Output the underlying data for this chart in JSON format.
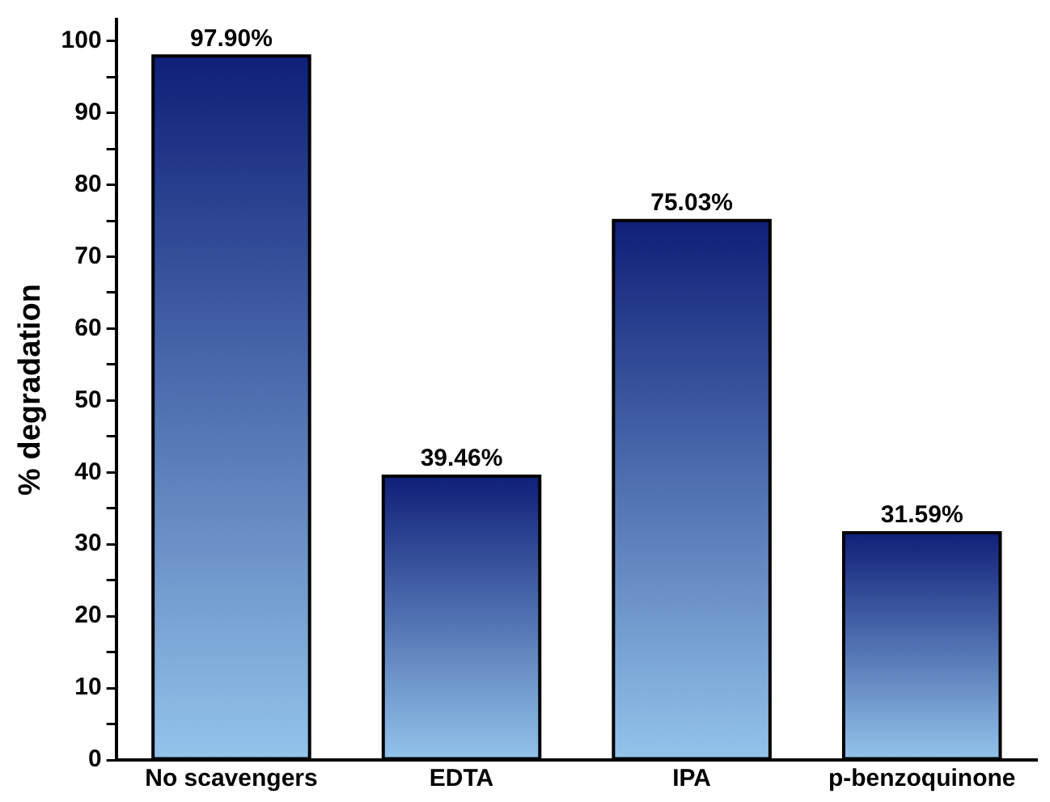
{
  "chart_data": {
    "type": "bar",
    "ylabel": "% degradation",
    "categories": [
      "No scavengers",
      "EDTA",
      "IPA",
      "p-benzoquinone"
    ],
    "values": [
      97.9,
      39.46,
      75.03,
      31.59
    ],
    "value_labels": [
      "97.90%",
      "39.46%",
      "75.03%",
      "31.59%"
    ],
    "color": "#0f1f78",
    "ylim": [
      0,
      103
    ],
    "yticks": [
      0,
      {
        "value": 5,
        "label": null
      },
      10,
      {
        "value": 15,
        "label": null
      },
      20,
      {
        "value": 25,
        "label": null
      },
      30,
      {
        "value": 35,
        "label": null
      },
      40,
      {
        "value": 45,
        "label": null
      },
      50,
      {
        "value": 55,
        "label": null
      },
      60,
      {
        "value": 65,
        "label": null
      },
      70,
      {
        "value": 75,
        "label": null
      },
      80,
      {
        "value": 85,
        "label": null
      },
      90,
      {
        "value": 95,
        "label": null
      },
      100
    ],
    "grid": false,
    "legend": false
  }
}
